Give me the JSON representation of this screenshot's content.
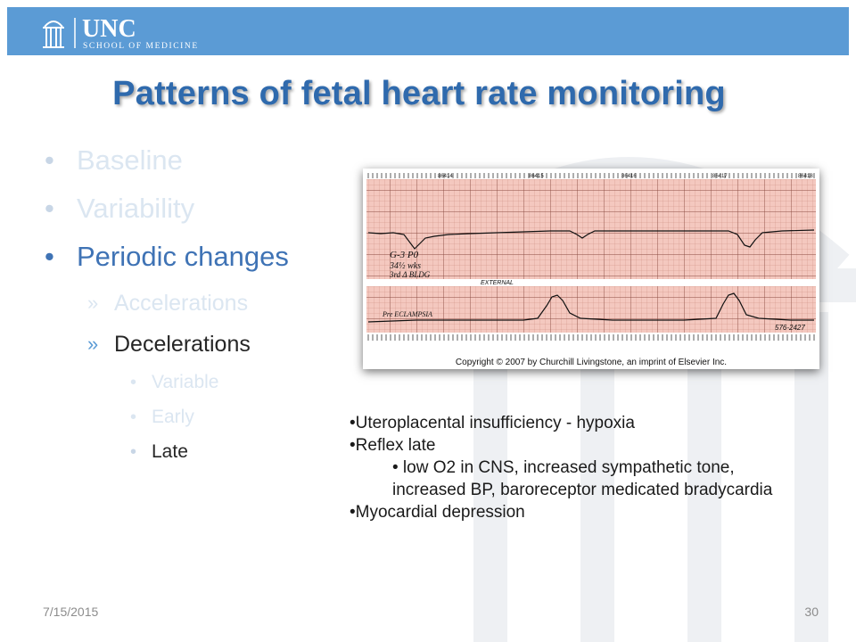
{
  "header": {
    "logo_main": "UNC",
    "logo_sub": "SCHOOL OF MEDICINE",
    "accent": "#5b9bd5"
  },
  "title": "Patterns of fetal heart rate monitoring",
  "bullets": {
    "level1": [
      "Baseline",
      "Variability",
      "Periodic changes"
    ],
    "level2": [
      "Accelerations",
      "Decelerations"
    ],
    "level3": [
      "Variable",
      "Early",
      "Late"
    ]
  },
  "figure": {
    "caption": "Copyright © 2007 by Churchill Livingstone, an imprint of Elsevier Inc.",
    "strip_numbers": [
      "86414",
      "86415",
      "86416",
      "86417",
      "86418"
    ],
    "annotations": {
      "hand_line1": "G-3  P0",
      "hand_line2": "34½ wks",
      "hand_line3": "3rd Δ BLDG",
      "hand_line4": "Pre ECLAMPSIA",
      "external": "EXTERNAL",
      "chart_id": "576-2427"
    }
  },
  "notes": {
    "items": [
      "•Uteroplacental insufficiency - hypoxia",
      "•Reflex late",
      "• low O2 in CNS, increased sympathetic tone, increased BP, baroreceptor medicated bradycardia",
      "•Myocardial depression"
    ]
  },
  "footer": {
    "date": "7/15/2015",
    "page": "30"
  }
}
